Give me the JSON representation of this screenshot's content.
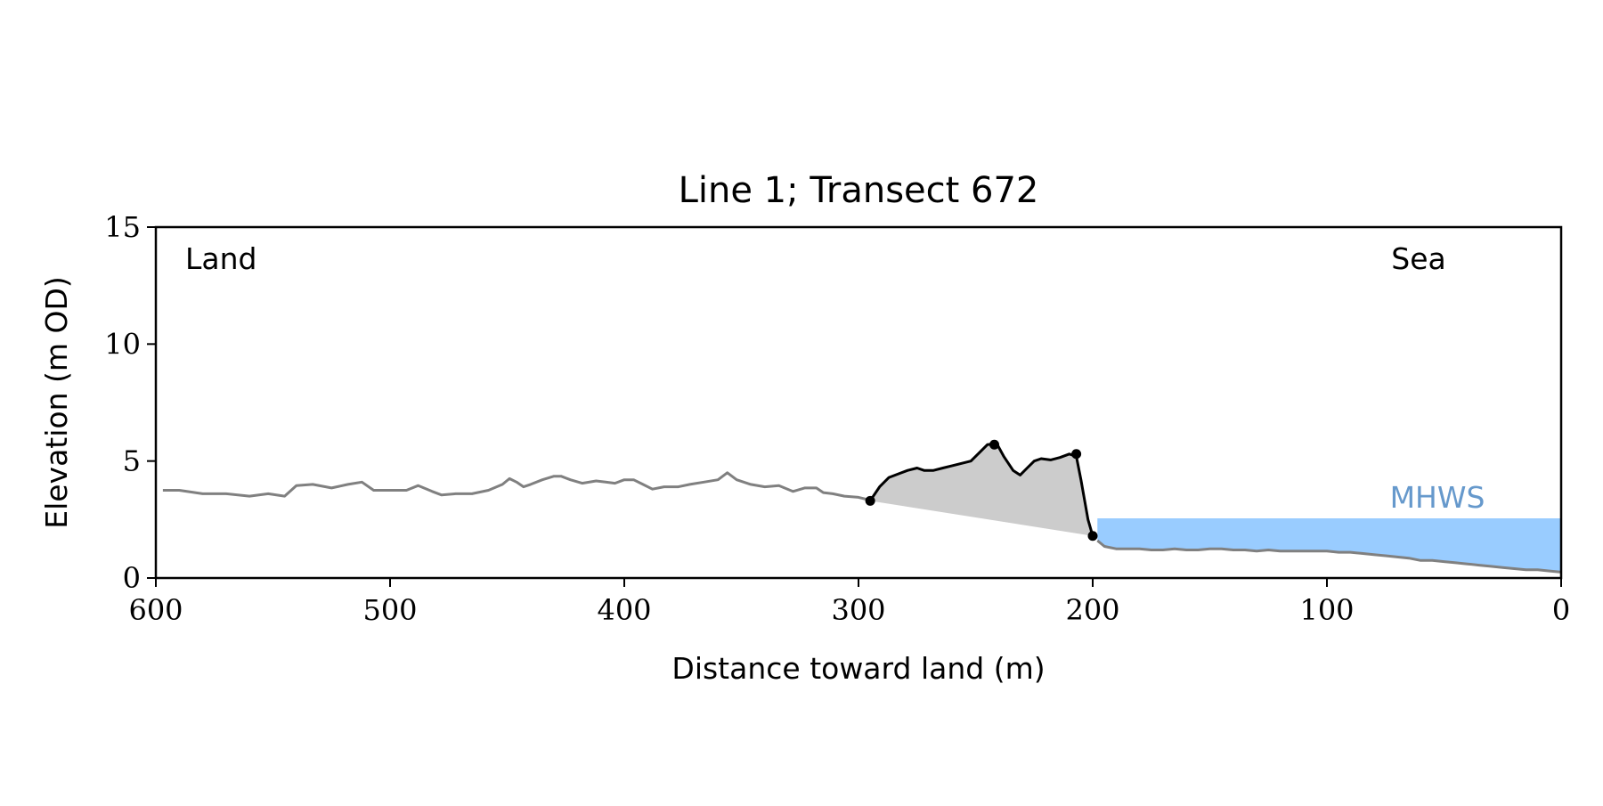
{
  "chart_data": {
    "type": "line",
    "title": "Line 1; Transect 672",
    "xlabel": "Distance toward land (m)",
    "ylabel": "Elevation (m OD)",
    "xlim": [
      600,
      0
    ],
    "ylim": [
      0,
      15
    ],
    "x_ticks": [
      600,
      500,
      400,
      300,
      200,
      100,
      0
    ],
    "y_ticks": [
      0,
      5,
      10,
      15
    ],
    "grid": false,
    "annotations": {
      "land": "Land",
      "sea": "Sea"
    },
    "mhws": {
      "label": "MHWS",
      "elevation": 2.55,
      "x_start": 198,
      "x_end": 0,
      "color": "#99CCFF",
      "label_color": "#6699CC"
    },
    "series": [
      {
        "role": "profile",
        "color": "#808080",
        "x": [
          597,
          590,
          580,
          570,
          560,
          552,
          545,
          540,
          533,
          525,
          518,
          512,
          507,
          500,
          493,
          488,
          482,
          478,
          472,
          465,
          458,
          452,
          449,
          446,
          443,
          440,
          435,
          430,
          427,
          423,
          418,
          412,
          408,
          404,
          400,
          396,
          392,
          388,
          383,
          377,
          372,
          366,
          360,
          356,
          352,
          346,
          340,
          334,
          328,
          323,
          318,
          315,
          311,
          306,
          300,
          296
        ],
        "y": [
          3.75,
          3.75,
          3.6,
          3.6,
          3.5,
          3.6,
          3.5,
          3.95,
          4.0,
          3.85,
          4.0,
          4.1,
          3.75,
          3.75,
          3.75,
          3.95,
          3.7,
          3.55,
          3.6,
          3.6,
          3.75,
          4.0,
          4.25,
          4.1,
          3.9,
          4.0,
          4.2,
          4.35,
          4.35,
          4.2,
          4.05,
          4.15,
          4.1,
          4.05,
          4.2,
          4.2,
          4.0,
          3.8,
          3.9,
          3.9,
          4.0,
          4.1,
          4.2,
          4.5,
          4.2,
          4.0,
          3.9,
          3.95,
          3.7,
          3.85,
          3.85,
          3.65,
          3.6,
          3.5,
          3.45,
          3.35
        ]
      },
      {
        "role": "profile",
        "color": "#808080",
        "x": [
          198,
          195,
          190,
          185,
          180,
          175,
          170,
          165,
          160,
          155,
          150,
          145,
          140,
          135,
          130,
          125,
          120,
          115,
          110,
          105,
          100,
          95,
          90,
          85,
          80,
          75,
          70,
          65,
          60,
          55,
          50,
          45,
          40,
          35,
          30,
          25,
          20,
          15,
          10,
          5,
          0
        ],
        "y": [
          1.6,
          1.35,
          1.25,
          1.25,
          1.25,
          1.2,
          1.2,
          1.25,
          1.2,
          1.2,
          1.25,
          1.25,
          1.2,
          1.2,
          1.15,
          1.2,
          1.15,
          1.15,
          1.15,
          1.15,
          1.15,
          1.1,
          1.1,
          1.05,
          1.0,
          0.95,
          0.9,
          0.85,
          0.75,
          0.75,
          0.7,
          0.65,
          0.6,
          0.55,
          0.5,
          0.45,
          0.4,
          0.35,
          0.35,
          0.3,
          0.25
        ]
      },
      {
        "role": "feature",
        "color": "#000000",
        "x": [
          295,
          291,
          287,
          283,
          279,
          275,
          272,
          268,
          264,
          260,
          256,
          252,
          248,
          245,
          241,
          238,
          234,
          231,
          228,
          225,
          222,
          218,
          214,
          210,
          207,
          205,
          202,
          200
        ],
        "y": [
          3.3,
          3.9,
          4.3,
          4.45,
          4.6,
          4.7,
          4.6,
          4.6,
          4.7,
          4.8,
          4.9,
          5.0,
          5.4,
          5.7,
          5.75,
          5.2,
          4.6,
          4.4,
          4.7,
          5.0,
          5.1,
          5.05,
          5.15,
          5.3,
          5.2,
          4.2,
          2.5,
          1.8
        ]
      }
    ],
    "markers": {
      "color": "#000000",
      "x": [
        295,
        242,
        207,
        200
      ],
      "y": [
        3.3,
        5.7,
        5.3,
        1.8
      ]
    },
    "fill": {
      "color": "#CCCCCC",
      "baseline_x": [
        295,
        200
      ],
      "baseline_y": [
        3.3,
        1.8
      ]
    }
  }
}
